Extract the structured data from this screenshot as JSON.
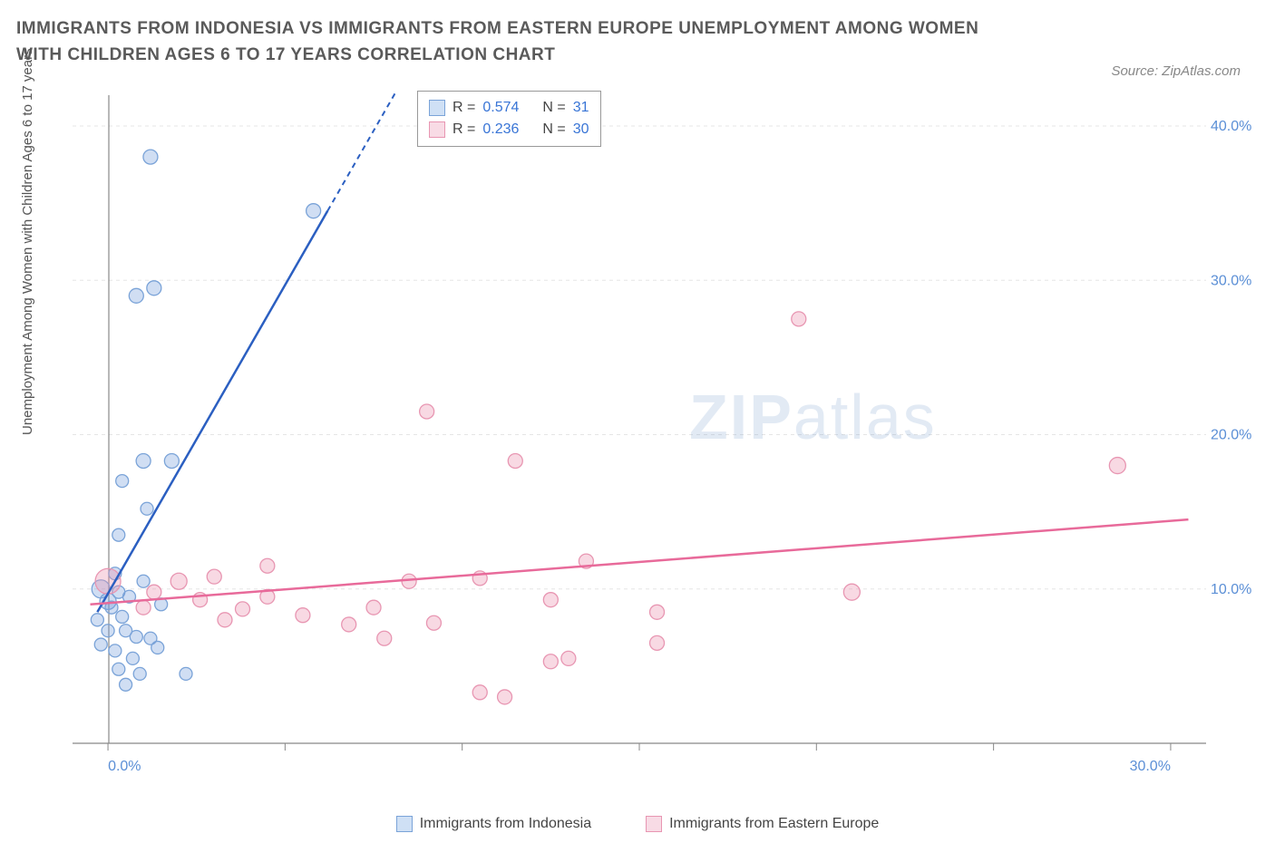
{
  "title": "IMMIGRANTS FROM INDONESIA VS IMMIGRANTS FROM EASTERN EUROPE UNEMPLOYMENT AMONG WOMEN WITH CHILDREN AGES 6 TO 17 YEARS CORRELATION CHART",
  "source": "Source: ZipAtlas.com",
  "ylabel": "Unemployment Among Women with Children Ages 6 to 17 years",
  "watermark_a": "ZIP",
  "watermark_b": "atlas",
  "chart": {
    "type": "scatter",
    "xlim": [
      -1,
      31
    ],
    "ylim": [
      0,
      42
    ],
    "xticks": [
      0,
      5,
      10,
      15,
      20,
      25,
      30
    ],
    "xtick_labels": [
      "0.0%",
      "",
      "",
      "",
      "",
      "",
      "30.0%"
    ],
    "yticks": [
      10,
      20,
      30,
      40
    ],
    "ytick_labels": [
      "10.0%",
      "20.0%",
      "30.0%",
      "40.0%"
    ],
    "grid_color": "#e5e5e5",
    "axis_color": "#888888",
    "tick_label_color": "#5b8fd6",
    "background": "#ffffff",
    "series": [
      {
        "name": "Immigrants from Indonesia",
        "color_fill": "rgba(120,160,220,0.35)",
        "color_stroke": "#7aa3d8",
        "swatch_fill": "#cfe0f5",
        "swatch_border": "#7aa3d8",
        "trend_color": "#2b5fc1",
        "trend": {
          "x1": -0.3,
          "y1": 8.5,
          "x2": 6.2,
          "y2": 34.5,
          "dash_x2": 8.2,
          "dash_y2": 42.5
        },
        "R": "0.574",
        "N": "31",
        "points": [
          {
            "x": 1.2,
            "y": 38.0,
            "r": 8
          },
          {
            "x": 5.8,
            "y": 34.5,
            "r": 8
          },
          {
            "x": 0.8,
            "y": 29.0,
            "r": 8
          },
          {
            "x": 1.3,
            "y": 29.5,
            "r": 8
          },
          {
            "x": 1.0,
            "y": 18.3,
            "r": 8
          },
          {
            "x": 1.8,
            "y": 18.3,
            "r": 8
          },
          {
            "x": 0.4,
            "y": 17.0,
            "r": 7
          },
          {
            "x": 1.1,
            "y": 15.2,
            "r": 7
          },
          {
            "x": 0.3,
            "y": 13.5,
            "r": 7
          },
          {
            "x": 0.2,
            "y": 11.0,
            "r": 7
          },
          {
            "x": -0.2,
            "y": 10.0,
            "r": 10
          },
          {
            "x": 0.0,
            "y": 9.2,
            "r": 9
          },
          {
            "x": 0.3,
            "y": 9.8,
            "r": 7
          },
          {
            "x": 0.6,
            "y": 9.5,
            "r": 7
          },
          {
            "x": 0.1,
            "y": 8.8,
            "r": 7
          },
          {
            "x": 0.4,
            "y": 8.2,
            "r": 7
          },
          {
            "x": -0.3,
            "y": 8.0,
            "r": 7
          },
          {
            "x": 0.0,
            "y": 7.3,
            "r": 7
          },
          {
            "x": 0.5,
            "y": 7.3,
            "r": 7
          },
          {
            "x": 0.8,
            "y": 6.9,
            "r": 7
          },
          {
            "x": 1.2,
            "y": 6.8,
            "r": 7
          },
          {
            "x": -0.2,
            "y": 6.4,
            "r": 7
          },
          {
            "x": 0.2,
            "y": 6.0,
            "r": 7
          },
          {
            "x": 0.7,
            "y": 5.5,
            "r": 7
          },
          {
            "x": 1.4,
            "y": 6.2,
            "r": 7
          },
          {
            "x": 0.3,
            "y": 4.8,
            "r": 7
          },
          {
            "x": 0.9,
            "y": 4.5,
            "r": 7
          },
          {
            "x": 2.2,
            "y": 4.5,
            "r": 7
          },
          {
            "x": 0.5,
            "y": 3.8,
            "r": 7
          },
          {
            "x": 1.5,
            "y": 9.0,
            "r": 7
          },
          {
            "x": 1.0,
            "y": 10.5,
            "r": 7
          }
        ]
      },
      {
        "name": "Immigrants from Eastern Europe",
        "color_fill": "rgba(235,145,175,0.35)",
        "color_stroke": "#e896b2",
        "swatch_fill": "#f8dbe5",
        "swatch_border": "#e896b2",
        "trend_color": "#e86a9a",
        "trend": {
          "x1": -0.5,
          "y1": 9.0,
          "x2": 30.5,
          "y2": 14.5
        },
        "R": "0.236",
        "N": "30",
        "points": [
          {
            "x": 19.5,
            "y": 27.5,
            "r": 8
          },
          {
            "x": 9.0,
            "y": 21.5,
            "r": 8
          },
          {
            "x": 11.5,
            "y": 18.3,
            "r": 8
          },
          {
            "x": 28.5,
            "y": 18.0,
            "r": 9
          },
          {
            "x": 0.0,
            "y": 10.5,
            "r": 14
          },
          {
            "x": 2.0,
            "y": 10.5,
            "r": 9
          },
          {
            "x": 3.0,
            "y": 10.8,
            "r": 8
          },
          {
            "x": 4.5,
            "y": 11.5,
            "r": 8
          },
          {
            "x": 13.5,
            "y": 11.8,
            "r": 8
          },
          {
            "x": 1.3,
            "y": 9.8,
            "r": 8
          },
          {
            "x": 2.6,
            "y": 9.3,
            "r": 8
          },
          {
            "x": 3.8,
            "y": 8.7,
            "r": 8
          },
          {
            "x": 4.5,
            "y": 9.5,
            "r": 8
          },
          {
            "x": 8.5,
            "y": 10.5,
            "r": 8
          },
          {
            "x": 10.5,
            "y": 10.7,
            "r": 8
          },
          {
            "x": 12.5,
            "y": 9.3,
            "r": 8
          },
          {
            "x": 15.5,
            "y": 8.5,
            "r": 8
          },
          {
            "x": 21.0,
            "y": 9.8,
            "r": 9
          },
          {
            "x": 3.3,
            "y": 8.0,
            "r": 8
          },
          {
            "x": 5.5,
            "y": 8.3,
            "r": 8
          },
          {
            "x": 6.8,
            "y": 7.7,
            "r": 8
          },
          {
            "x": 7.8,
            "y": 6.8,
            "r": 8
          },
          {
            "x": 9.2,
            "y": 7.8,
            "r": 8
          },
          {
            "x": 7.5,
            "y": 8.8,
            "r": 8
          },
          {
            "x": 12.5,
            "y": 5.3,
            "r": 8
          },
          {
            "x": 13.0,
            "y": 5.5,
            "r": 8
          },
          {
            "x": 15.5,
            "y": 6.5,
            "r": 8
          },
          {
            "x": 10.5,
            "y": 3.3,
            "r": 8
          },
          {
            "x": 11.2,
            "y": 3.0,
            "r": 8
          },
          {
            "x": 1.0,
            "y": 8.8,
            "r": 8
          }
        ]
      }
    ]
  },
  "legend_labels": {
    "R": "R =",
    "N": "N ="
  }
}
